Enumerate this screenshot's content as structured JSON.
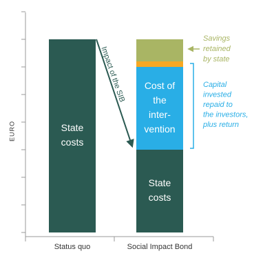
{
  "chart_data": {
    "type": "stacked_bar",
    "y_label": "EURO",
    "categories": [
      "Status quo",
      "Social Impact Bond"
    ],
    "ylim": [
      0,
      8
    ],
    "yticks": [
      0,
      1,
      2,
      3,
      4,
      5,
      6,
      7,
      8
    ],
    "series": [
      {
        "name": [
          "State",
          "costs"
        ],
        "color": "#2b5a52",
        "values": [
          7,
          3
        ]
      },
      {
        "name": [
          "Cost of",
          "the",
          "inter-",
          "vention"
        ],
        "color": "#29aee6",
        "values": [
          null,
          3
        ]
      },
      {
        "color": "#f7a823",
        "values": [
          null,
          0.2
        ]
      },
      {
        "color": "#a9b564",
        "values": [
          null,
          0.8
        ]
      }
    ],
    "annotations": {
      "impact": "Impact of the SIB",
      "savings": [
        "Savings",
        "retained",
        "by state"
      ],
      "capital": [
        "Capital",
        "invested",
        "repaid to",
        "the investors,",
        "plus return"
      ]
    }
  }
}
